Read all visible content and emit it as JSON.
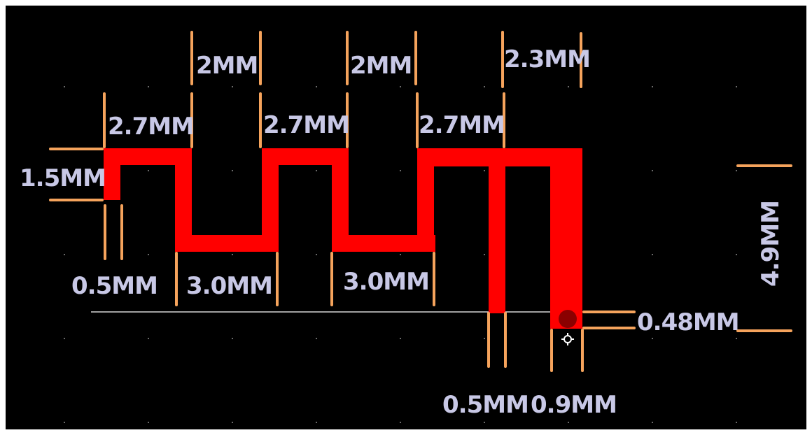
{
  "colors": {
    "frame": "#ffffff",
    "board": "#000000",
    "trace": "#ff0000",
    "via": "#8a0000",
    "dimension_line": "#f5a35c",
    "label": "#c8c8e6",
    "grid_dot": "#8c8c8c",
    "guide_line": "#ffffff"
  },
  "dimensions": {
    "top_width_1": "2MM",
    "top_width_2": "2MM",
    "top_width_3": "2.3MM",
    "gap_1": "2.7MM",
    "gap_2": "2.7MM",
    "gap_3": "2.7MM",
    "feed_height": "1.5MM",
    "feed_width": "0.5MM",
    "bottom_width_1": "3.0MM",
    "bottom_width_2": "3.0MM",
    "via_offset": "0.48MM",
    "total_height": "4.9MM",
    "stub_width": "0.5MM",
    "end_width": "0.9MM"
  },
  "icons": {
    "via": "via-pad-icon",
    "origin": "origin-marker-icon"
  }
}
